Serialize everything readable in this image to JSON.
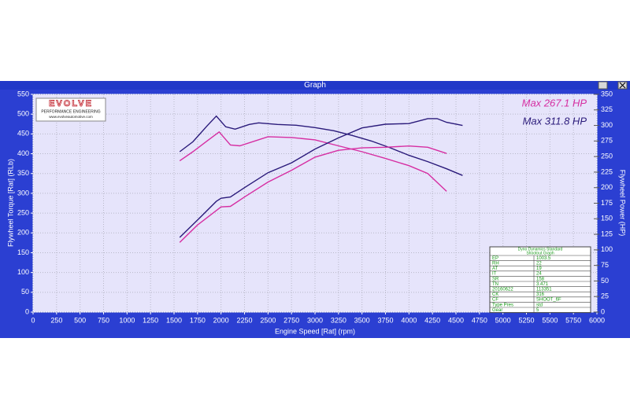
{
  "window_title": "Graph",
  "chart_data": {
    "type": "line",
    "xlabel": "Engine Speed [Rat] (rpm)",
    "ylabel": "Flywheel Torque [Rat] (RLb)",
    "y2label": "Flywheel Power (HP)",
    "xlim": [
      0,
      6000
    ],
    "xticks": [
      0,
      250,
      500,
      750,
      1000,
      1250,
      1500,
      1750,
      2000,
      2250,
      2500,
      2750,
      3000,
      3250,
      3500,
      3750,
      4000,
      4250,
      4500,
      4750,
      5000,
      5250,
      5500,
      5750,
      6000
    ],
    "ylim": [
      0,
      550
    ],
    "yticks": [
      0,
      50,
      100,
      150,
      200,
      250,
      300,
      350,
      400,
      450,
      500,
      550
    ],
    "y2lim": [
      0,
      350
    ],
    "y2ticks": [
      0,
      25,
      50,
      75,
      100,
      125,
      150,
      175,
      200,
      225,
      250,
      275,
      300,
      325,
      350
    ],
    "grid": true,
    "annotations": [
      {
        "text": "Max 267.1 HP",
        "color": "#d62ea2"
      },
      {
        "text": "Max 311.8 HP",
        "color": "#2a1a7a"
      }
    ],
    "logo": {
      "brand": "EVOLVE",
      "tagline": "PERFORMANCE ENGINEERING",
      "url": "www.evolveautomotive.com"
    },
    "table": {
      "title": [
        "Dyno Dynamics Standard",
        "Shootout Graph"
      ],
      "rows": [
        [
          "EP",
          "1003.5"
        ],
        [
          "RH",
          "22"
        ],
        [
          "AT",
          "19"
        ],
        [
          "IT",
          "24"
        ],
        [
          "SR",
          "158"
        ],
        [
          "TN",
          "3.471"
        ],
        [
          "20160622",
          "113351"
        ],
        [
          "CK",
          "316"
        ],
        [
          "CF",
          "SHOOT_6F"
        ],
        [
          "Type Pres",
          "std"
        ],
        [
          "Gear",
          "5"
        ]
      ]
    },
    "series": [
      {
        "color": "#2a1a7a",
        "x": [
          1560,
          1700,
          1850,
          1950,
          2050,
          2150,
          2300,
          2400,
          2600,
          2800,
          3000,
          3200,
          3400,
          3600,
          3800,
          4000,
          4200,
          4400,
          4570
        ],
        "values": [
          405,
          430,
          470,
          495,
          468,
          462,
          474,
          478,
          474,
          472,
          466,
          458,
          446,
          432,
          415,
          396,
          380,
          362,
          345
        ]
      },
      {
        "color": "#d62ea2",
        "x": [
          1560,
          1700,
          1850,
          1980,
          2100,
          2200,
          2500,
          2750,
          3000,
          3250,
          3500,
          3750,
          4000,
          4200,
          4400
        ],
        "values": [
          382,
          405,
          432,
          455,
          422,
          420,
          443,
          441,
          435,
          420,
          405,
          388,
          370,
          350,
          305
        ]
      },
      {
        "color": "#2a1a7a",
        "axis": "y2",
        "x": [
          1560,
          1750,
          1950,
          2000,
          2100,
          2250,
          2500,
          2750,
          3000,
          3250,
          3500,
          3750,
          4000,
          4200,
          4300,
          4400,
          4570
        ],
        "values": [
          120,
          148,
          178,
          183,
          185,
          200,
          224,
          240,
          262,
          280,
          296,
          302,
          303,
          311,
          311,
          305,
          300
        ]
      },
      {
        "color": "#d62ea2",
        "axis": "y2",
        "x": [
          1560,
          1750,
          2000,
          2100,
          2250,
          2500,
          2750,
          3000,
          3250,
          3500,
          3750,
          4000,
          4200,
          4400
        ],
        "values": [
          112,
          140,
          169,
          170,
          185,
          209,
          228,
          249,
          260,
          264,
          265,
          267,
          265,
          255
        ]
      }
    ]
  }
}
